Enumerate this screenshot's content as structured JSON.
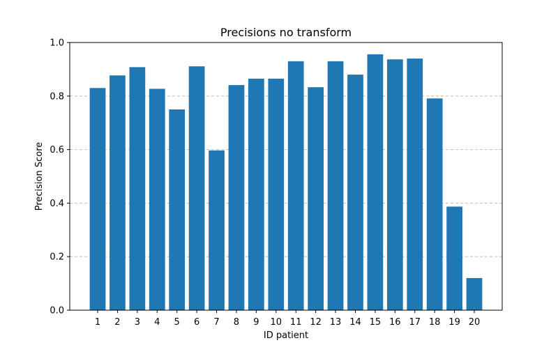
{
  "chart_data": {
    "type": "bar",
    "title": "Precisions no transform",
    "xlabel": "ID patient",
    "ylabel": "Precision Score",
    "categories": [
      "1",
      "2",
      "3",
      "4",
      "5",
      "6",
      "7",
      "8",
      "9",
      "10",
      "11",
      "12",
      "13",
      "14",
      "15",
      "16",
      "17",
      "18",
      "19",
      "20"
    ],
    "values": [
      0.83,
      0.877,
      0.908,
      0.827,
      0.75,
      0.911,
      0.597,
      0.841,
      0.865,
      0.865,
      0.93,
      0.833,
      0.93,
      0.88,
      0.956,
      0.937,
      0.94,
      0.791,
      0.387,
      0.12
    ],
    "ylim": [
      0,
      1.0
    ],
    "yticks": [
      "0.0",
      "0.2",
      "0.4",
      "0.6",
      "0.8",
      "1.0"
    ],
    "grid": "y-dashed",
    "bar_color": "#1f77b4"
  }
}
